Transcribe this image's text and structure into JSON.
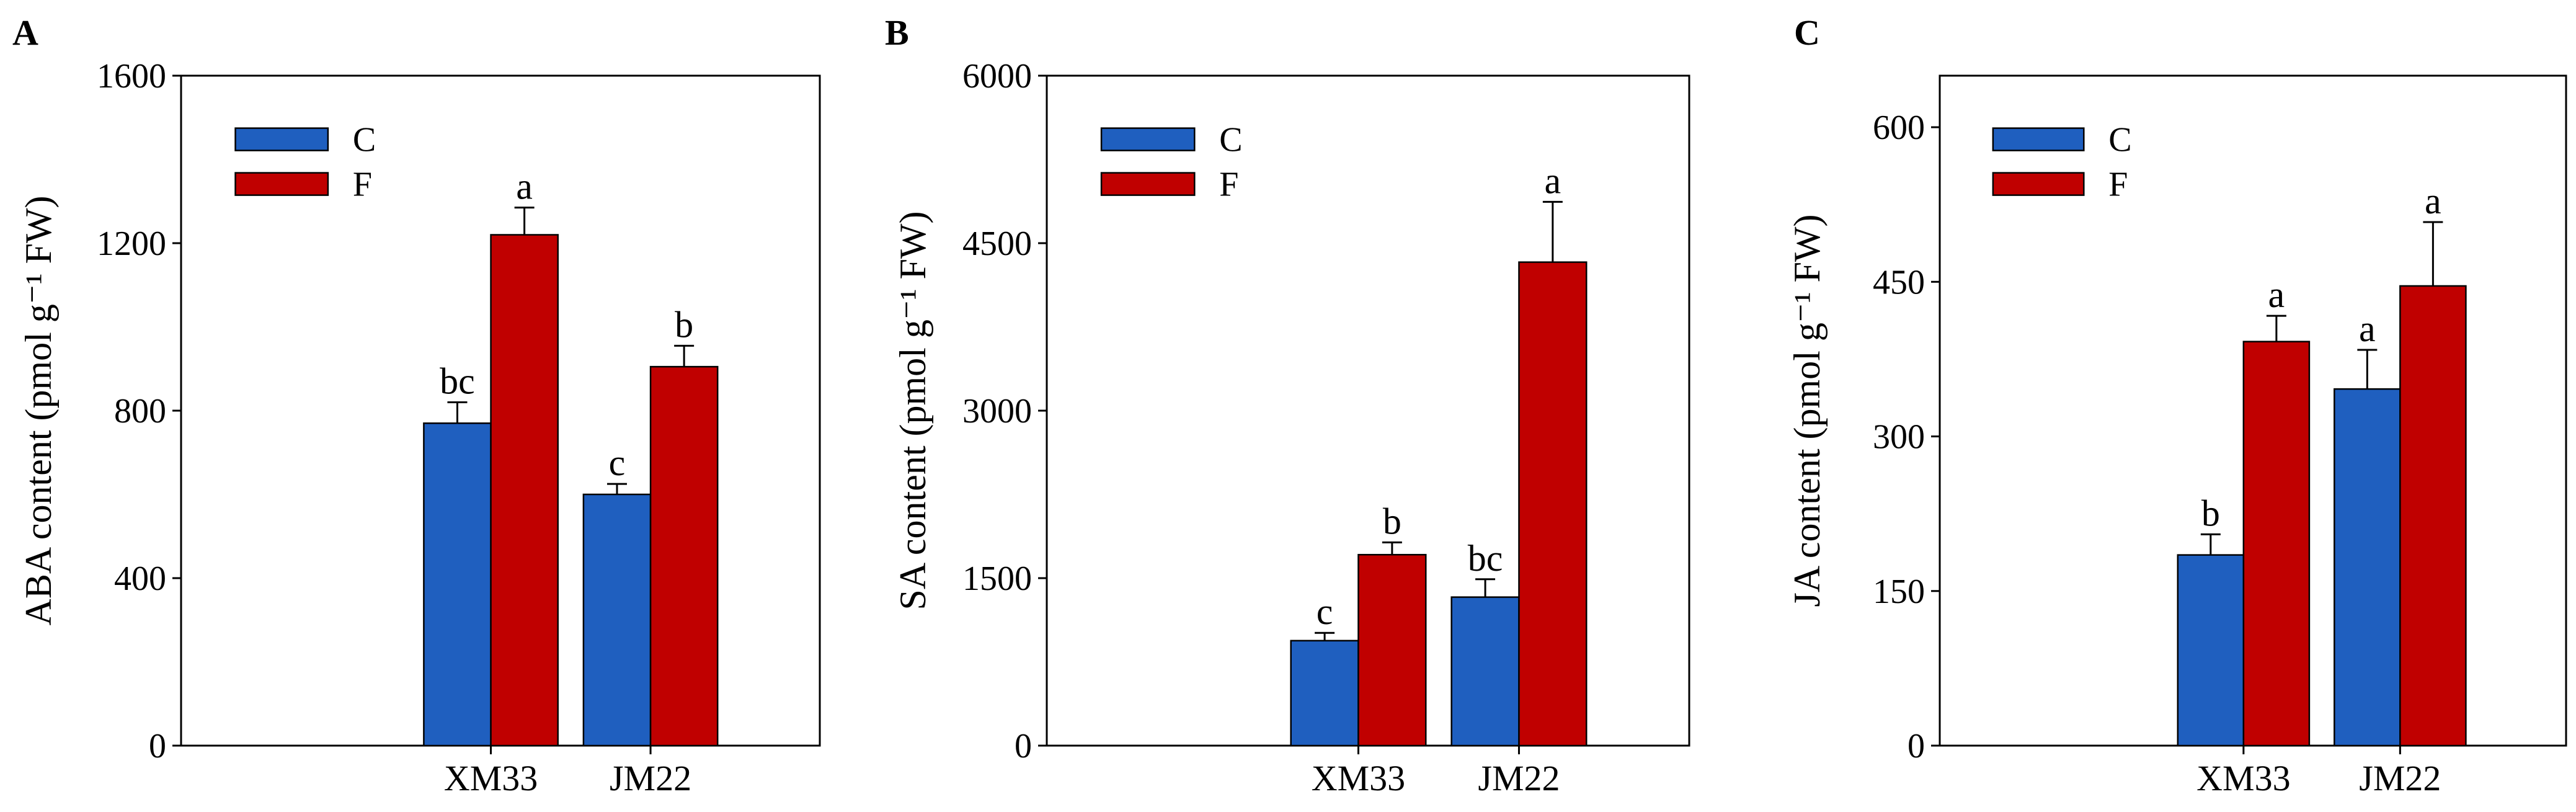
{
  "chart_data": [
    {
      "type": "bar",
      "panel": "A",
      "categories": [
        "XM33",
        "JM22"
      ],
      "ylabel": "ABA content (pmol g⁻¹ FW)",
      "ylim": [
        0,
        1600
      ],
      "yticks": [
        0,
        400,
        800,
        1200,
        1600
      ],
      "legend": "top-left",
      "series": [
        {
          "name": "C",
          "color": "#1f5fbf",
          "values": [
            770,
            600
          ],
          "errors": [
            50,
            25
          ],
          "letters": [
            "bc",
            "c"
          ]
        },
        {
          "name": "F",
          "color": "#c00000",
          "values": [
            1220,
            905
          ],
          "errors": [
            65,
            50
          ],
          "letters": [
            "a",
            "b"
          ]
        }
      ]
    },
    {
      "type": "bar",
      "panel": "B",
      "categories": [
        "XM33",
        "JM22"
      ],
      "ylabel": "SA content (pmol g⁻¹ FW)",
      "ylim": [
        0,
        6000
      ],
      "yticks": [
        0,
        1500,
        3000,
        4500,
        6000
      ],
      "legend": "top-left",
      "series": [
        {
          "name": "C",
          "color": "#1f5fbf",
          "values": [
            940,
            1330
          ],
          "errors": [
            70,
            160
          ],
          "letters": [
            "c",
            "bc"
          ]
        },
        {
          "name": "F",
          "color": "#c00000",
          "values": [
            1710,
            4330
          ],
          "errors": [
            110,
            540
          ],
          "letters": [
            "b",
            "a"
          ]
        }
      ]
    },
    {
      "type": "bar",
      "panel": "C",
      "categories": [
        "XM33",
        "JM22"
      ],
      "ylabel": "JA content (pmol g⁻¹ FW)",
      "ylim": [
        0,
        650
      ],
      "yticks": [
        0,
        150,
        300,
        450,
        600
      ],
      "legend": "top-left",
      "series": [
        {
          "name": "C",
          "color": "#1f5fbf",
          "values": [
            185,
            346
          ],
          "errors": [
            20,
            38
          ],
          "letters": [
            "b",
            "a"
          ]
        },
        {
          "name": "F",
          "color": "#c00000",
          "values": [
            392,
            446
          ],
          "errors": [
            25,
            62
          ],
          "letters": [
            "a",
            "a"
          ]
        }
      ]
    }
  ]
}
